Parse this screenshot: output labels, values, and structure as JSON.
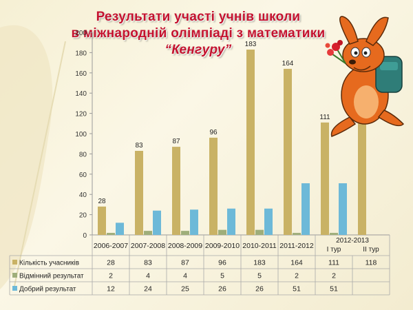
{
  "title": {
    "line1": "Результати   участі учнів школи",
    "line2": "в міжнародній олімпіаді з математики",
    "line3": "“Кенгуру”"
  },
  "colors": {
    "title": "#c4122e",
    "series": [
      "#c9b265",
      "#9fae7a",
      "#6db9d8"
    ],
    "kangaroo": "#e66a1e",
    "backpack": "#2f7d78"
  },
  "icons": [
    "kangaroo-mascot-icon",
    "flower-bouquet-icon"
  ],
  "chart_data": {
    "type": "bar",
    "title": "Результати   участі учнів школи в міжнародній олімпіаді з математики “Кенгуру”",
    "categories": [
      "2006-2007",
      "2007-2008",
      "2008-2009",
      "2009-2010",
      "2010-2011",
      "2011-2012",
      "2012-2013",
      ""
    ],
    "category_sublabels": [
      "",
      "",
      "",
      "",
      "",
      "",
      "І тур",
      "ІІ тур"
    ],
    "ylim": [
      0,
      200
    ],
    "yticks": [
      0,
      20,
      40,
      60,
      80,
      100,
      120,
      140,
      160,
      180,
      200
    ],
    "grid": false,
    "legend": "data-table-left",
    "series": [
      {
        "name": "Кількість учасників",
        "values": [
          28,
          83,
          87,
          96,
          183,
          164,
          111,
          118
        ],
        "labels": [
          "28",
          "83",
          "87",
          "96",
          "183",
          "164",
          "111",
          "118"
        ]
      },
      {
        "name": "Відмінний результат",
        "values": [
          2,
          4,
          4,
          5,
          5,
          2,
          2,
          null
        ],
        "labels": [
          "2",
          "4",
          "4",
          "5",
          "5",
          "2",
          "2",
          ""
        ]
      },
      {
        "name": "Добрий результат",
        "values": [
          12,
          24,
          25,
          26,
          26,
          51,
          51,
          null
        ],
        "labels": [
          "12",
          "24",
          "25",
          "26",
          "26",
          "51",
          "51",
          ""
        ]
      }
    ]
  }
}
